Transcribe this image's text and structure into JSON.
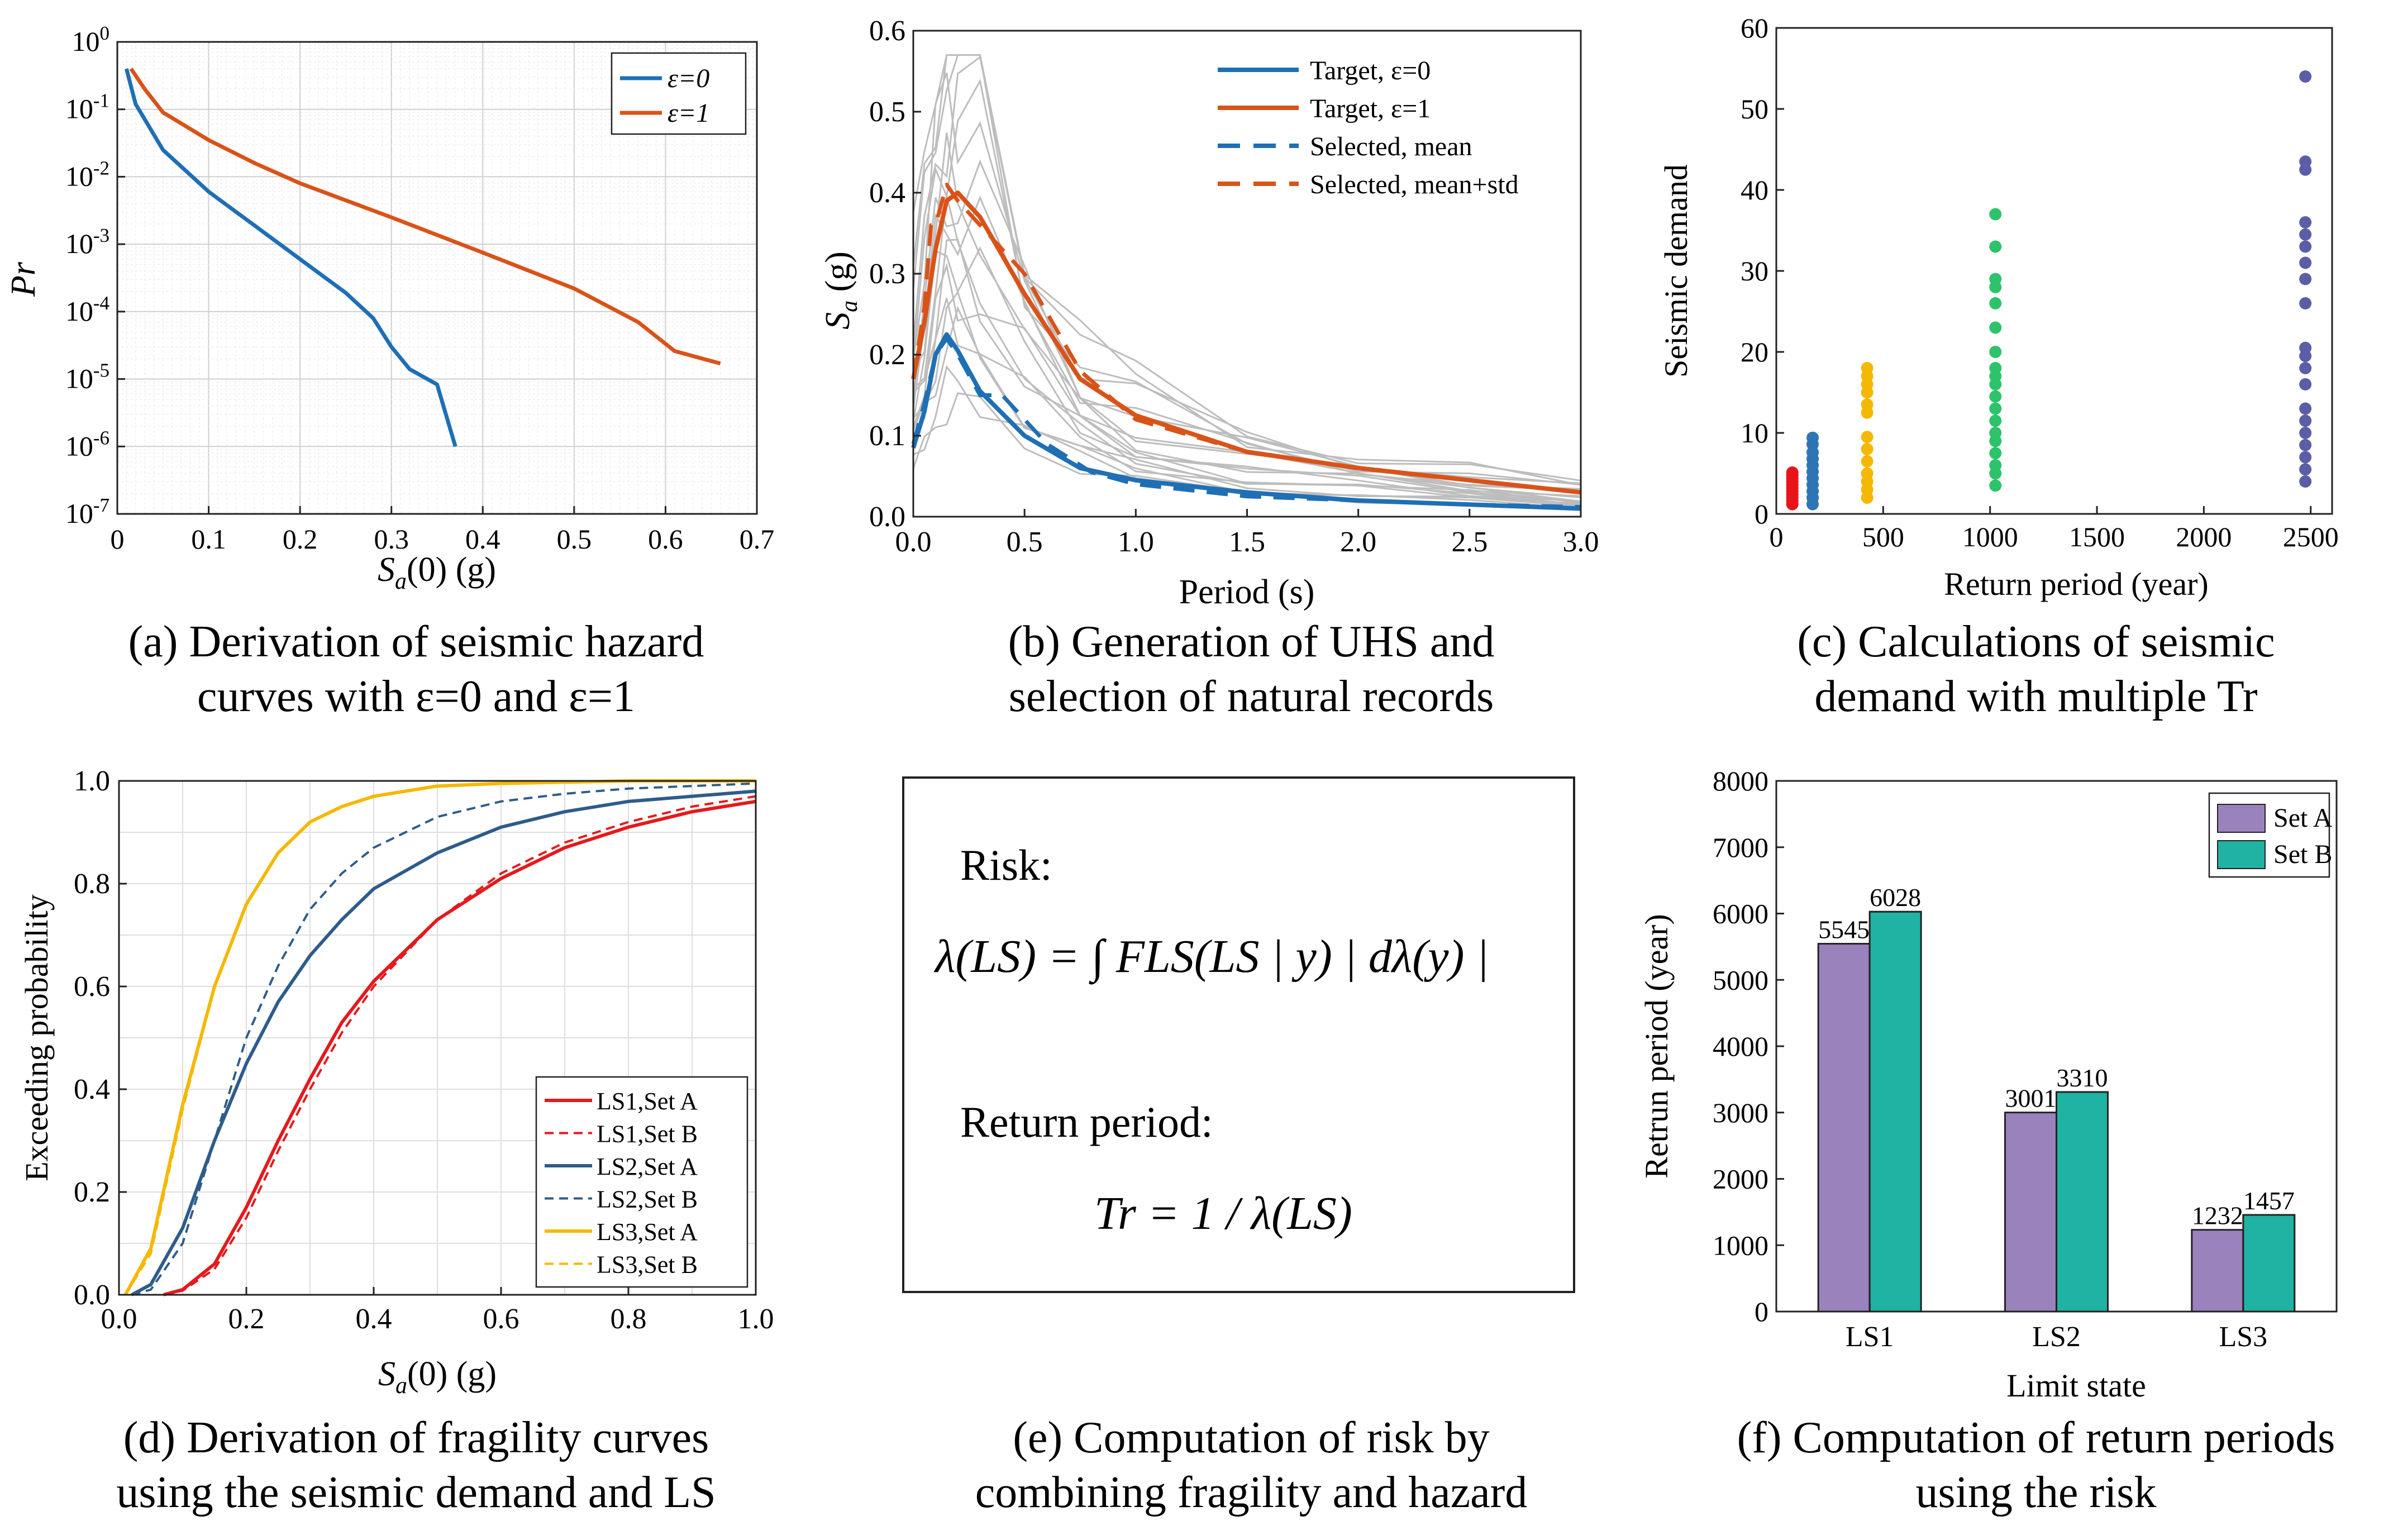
{
  "captions": {
    "a": [
      "(a) Derivation of seismic hazard",
      "curves with ε=0 and ε=1"
    ],
    "b": [
      "(b) Generation of UHS and",
      "selection of natural records"
    ],
    "c": [
      "(c) Calculations of seismic",
      "demand with multiple Tr"
    ],
    "d": [
      "(d) Derivation of fragility curves",
      "using the seismic demand and LS"
    ],
    "e": [
      "(e) Computation of risk by",
      "combining fragility and hazard"
    ],
    "f": [
      "(f) Computation of return periods",
      "using the risk"
    ]
  },
  "formula": {
    "risk_label": "Risk:",
    "risk_equation": "λ(LS) = ∫ FLS(LS | y) | dλ(y) |",
    "return_label": "Return period:",
    "return_equation": "Tr = 1 / λ(LS)"
  },
  "colors": {
    "blue": "#1f6fb5",
    "orange": "#d95319",
    "red": "#e41a1c",
    "navy": "#2e5c8a",
    "gold": "#f5b800",
    "purple": "#9a82bd",
    "teal": "#20b2a2",
    "gray": "#bdbdbd"
  },
  "chart_data": [
    {
      "id": "a",
      "type": "line",
      "xlabel": "Sa(0) (g)",
      "ylabel": "Pr",
      "xlim": [
        0,
        0.7
      ],
      "ylim": [
        1e-07,
        1
      ],
      "yscale": "log",
      "grid": true,
      "legend_position": "top-right",
      "xticks": [
        "0",
        "0.1",
        "0.2",
        "0.3",
        "0.4",
        "0.5",
        "0.6",
        "0.7"
      ],
      "yticks": [
        "10^-7",
        "10^-6",
        "10^-5",
        "10^-4",
        "10^-3",
        "10^-2",
        "10^-1",
        "10^0"
      ],
      "series": [
        {
          "name": "ε=0",
          "color": "#1f6fb5",
          "x": [
            0.01,
            0.02,
            0.05,
            0.1,
            0.15,
            0.2,
            0.25,
            0.28,
            0.3,
            0.32,
            0.35,
            0.37
          ],
          "y": [
            0.4,
            0.12,
            0.025,
            0.006,
            0.0019,
            0.0006,
            0.00019,
            8e-05,
            3e-05,
            1.4e-05,
            8.3e-06,
            1e-06
          ]
        },
        {
          "name": "ε=1",
          "color": "#d95319",
          "x": [
            0.015,
            0.03,
            0.05,
            0.1,
            0.15,
            0.2,
            0.3,
            0.4,
            0.5,
            0.57,
            0.61,
            0.66
          ],
          "y": [
            0.4,
            0.2,
            0.09,
            0.035,
            0.016,
            0.008,
            0.0025,
            0.00075,
            0.00022,
            7e-05,
            2.6e-05,
            1.7e-05
          ]
        }
      ]
    },
    {
      "id": "b",
      "type": "line",
      "xlabel": "Period (s)",
      "ylabel": "Sa (g)",
      "xlim": [
        0,
        3.0
      ],
      "ylim": [
        0,
        0.6
      ],
      "legend_position": "top-right",
      "xticks": [
        "0.0",
        "0.5",
        "1.0",
        "1.5",
        "2.0",
        "2.5",
        "3.0"
      ],
      "yticks": [
        "0.0",
        "0.1",
        "0.2",
        "0.3",
        "0.4",
        "0.5",
        "0.6"
      ],
      "series": [
        {
          "name": "Target, ε=0",
          "style": "solid",
          "color": "#1f6fb5",
          "x": [
            0,
            0.05,
            0.1,
            0.15,
            0.2,
            0.3,
            0.5,
            0.75,
            1.0,
            1.5,
            2.0,
            2.5,
            3.0
          ],
          "y": [
            0.085,
            0.13,
            0.2,
            0.225,
            0.205,
            0.155,
            0.1,
            0.06,
            0.045,
            0.03,
            0.02,
            0.015,
            0.01
          ]
        },
        {
          "name": "Target, ε=1",
          "style": "solid",
          "color": "#d95319",
          "x": [
            0,
            0.05,
            0.1,
            0.15,
            0.2,
            0.3,
            0.5,
            0.75,
            1.0,
            1.5,
            2.0,
            2.5,
            3.0
          ],
          "y": [
            0.17,
            0.24,
            0.33,
            0.39,
            0.4,
            0.37,
            0.275,
            0.17,
            0.125,
            0.08,
            0.06,
            0.045,
            0.03
          ]
        },
        {
          "name": "Selected, mean",
          "style": "dashed",
          "color": "#1f6fb5",
          "x": [
            0,
            0.05,
            0.1,
            0.15,
            0.2,
            0.3,
            0.4,
            0.5,
            0.6,
            0.8,
            1.0,
            1.5,
            2.0,
            2.5,
            3.0
          ],
          "y": [
            0.09,
            0.14,
            0.2,
            0.22,
            0.2,
            0.15,
            0.15,
            0.12,
            0.09,
            0.055,
            0.04,
            0.025,
            0.02,
            0.015,
            0.012
          ]
        },
        {
          "name": "Selected, mean+std",
          "style": "dashed",
          "color": "#d95319",
          "x": [
            0,
            0.05,
            0.08,
            0.1,
            0.15,
            0.2,
            0.3,
            0.5,
            0.75,
            1.0,
            1.5,
            2.0,
            2.5,
            3.0
          ],
          "y": [
            0.17,
            0.26,
            0.36,
            0.36,
            0.41,
            0.39,
            0.36,
            0.3,
            0.18,
            0.12,
            0.08,
            0.06,
            0.045,
            0.03
          ]
        }
      ]
    },
    {
      "id": "c",
      "type": "scatter",
      "xlabel": "Return period (year)",
      "ylabel": "Seismic demand",
      "xlim": [
        0,
        2600
      ],
      "ylim": [
        0,
        60
      ],
      "xticks": [
        "0",
        "500",
        "1000",
        "1500",
        "2000",
        "2500"
      ],
      "yticks": [
        "0",
        "10",
        "20",
        "30",
        "40",
        "50",
        "60"
      ],
      "groups": [
        {
          "x": 75,
          "color": "#e8141a",
          "y": [
            1.2,
            1.6,
            2.0,
            2.4,
            2.8,
            3.2,
            3.6,
            4.0,
            4.4,
            4.8,
            5.1
          ]
        },
        {
          "x": 170,
          "color": "#2e75b6",
          "y": [
            1.2,
            2.0,
            2.8,
            3.6,
            4.4,
            5.2,
            6.0,
            6.8,
            7.6,
            8.6,
            9.4
          ]
        },
        {
          "x": 425,
          "color": "#f5b800",
          "y": [
            2.0,
            3.0,
            4.0,
            5.0,
            6.5,
            8.0,
            9.5,
            12.5,
            13.5,
            15.0,
            16.0,
            17.0,
            18.0
          ]
        },
        {
          "x": 1025,
          "color": "#2dc36b",
          "y": [
            3.5,
            5.0,
            6.0,
            7.5,
            9.0,
            10.0,
            11.5,
            13.0,
            14.5,
            16.0,
            17.0,
            18.0,
            20.0,
            23.0,
            26.0,
            28.0,
            29.0,
            33.0,
            37.0
          ]
        },
        {
          "x": 2475,
          "color": "#5b5ea6",
          "y": [
            4.0,
            5.5,
            7.0,
            8.5,
            10.0,
            11.5,
            13.0,
            16.0,
            18.0,
            19.5,
            20.5,
            26.0,
            29.0,
            31.0,
            33.0,
            34.5,
            36.0,
            42.5,
            43.5,
            54.0
          ]
        }
      ]
    },
    {
      "id": "d",
      "type": "line",
      "xlabel": "Sa(0) (g)",
      "ylabel": "Exceeding probability",
      "xlim": [
        0,
        1.0
      ],
      "ylim": [
        0,
        1.0
      ],
      "grid": true,
      "legend_position": "bottom-right",
      "xticks": [
        "0.0",
        "0.2",
        "0.4",
        "0.6",
        "0.8",
        "1.0"
      ],
      "yticks": [
        "0.0",
        "0.2",
        "0.4",
        "0.6",
        "0.8",
        "1.0"
      ],
      "series": [
        {
          "name": "LS1,Set A",
          "style": "solid",
          "color": "#e41a1c",
          "x": [
            0.07,
            0.1,
            0.15,
            0.2,
            0.25,
            0.3,
            0.35,
            0.4,
            0.5,
            0.6,
            0.7,
            0.8,
            0.9,
            1.0
          ],
          "y": [
            0.0,
            0.01,
            0.06,
            0.17,
            0.3,
            0.42,
            0.53,
            0.61,
            0.73,
            0.81,
            0.87,
            0.91,
            0.94,
            0.96
          ]
        },
        {
          "name": "LS1,Set B",
          "style": "dashed",
          "color": "#e41a1c",
          "x": [
            0.07,
            0.1,
            0.15,
            0.2,
            0.25,
            0.3,
            0.35,
            0.4,
            0.5,
            0.6,
            0.7,
            0.8,
            0.9,
            1.0
          ],
          "y": [
            0.0,
            0.008,
            0.05,
            0.15,
            0.28,
            0.4,
            0.51,
            0.6,
            0.73,
            0.82,
            0.88,
            0.92,
            0.95,
            0.97
          ]
        },
        {
          "name": "LS2,Set A",
          "style": "solid",
          "color": "#2e5c8a",
          "x": [
            0.02,
            0.05,
            0.1,
            0.15,
            0.2,
            0.25,
            0.3,
            0.35,
            0.4,
            0.5,
            0.6,
            0.7,
            0.8,
            1.0
          ],
          "y": [
            0.0,
            0.02,
            0.13,
            0.3,
            0.45,
            0.57,
            0.66,
            0.73,
            0.79,
            0.86,
            0.91,
            0.94,
            0.96,
            0.98
          ]
        },
        {
          "name": "LS2,Set B",
          "style": "dashed",
          "color": "#2e5c8a",
          "x": [
            0.02,
            0.05,
            0.1,
            0.15,
            0.2,
            0.25,
            0.3,
            0.35,
            0.4,
            0.5,
            0.6,
            0.7,
            0.8,
            1.0
          ],
          "y": [
            0.0,
            0.01,
            0.1,
            0.3,
            0.5,
            0.64,
            0.75,
            0.82,
            0.87,
            0.93,
            0.96,
            0.975,
            0.985,
            0.995
          ]
        },
        {
          "name": "LS3,Set A",
          "style": "solid",
          "color": "#f5b800",
          "x": [
            0.01,
            0.05,
            0.1,
            0.15,
            0.2,
            0.25,
            0.3,
            0.35,
            0.4,
            0.5,
            0.6,
            0.8,
            1.0
          ],
          "y": [
            0.0,
            0.09,
            0.37,
            0.6,
            0.76,
            0.86,
            0.92,
            0.95,
            0.97,
            0.99,
            0.995,
            1.0,
            1.0
          ]
        },
        {
          "name": "LS3,Set B",
          "style": "dashed",
          "color": "#f5b800",
          "x": [
            0.01,
            0.05,
            0.1,
            0.15,
            0.2,
            0.25,
            0.3,
            0.35,
            0.4,
            0.5,
            0.6,
            0.8,
            1.0
          ],
          "y": [
            0.0,
            0.08,
            0.36,
            0.6,
            0.76,
            0.86,
            0.92,
            0.95,
            0.97,
            0.99,
            0.995,
            1.0,
            1.0
          ]
        }
      ]
    },
    {
      "id": "f",
      "type": "bar",
      "xlabel": "Limit state",
      "ylabel": "Retrun period (year)",
      "ylim": [
        0,
        8000
      ],
      "legend_position": "top-right",
      "categories": [
        "LS1",
        "LS2",
        "LS3"
      ],
      "yticks": [
        "0",
        "1000",
        "2000",
        "3000",
        "4000",
        "5000",
        "6000",
        "7000",
        "8000"
      ],
      "series": [
        {
          "name": "Set A",
          "color": "#9a82bd",
          "values": [
            5545,
            3001,
            1232
          ]
        },
        {
          "name": "Set B",
          "color": "#20b2a2",
          "values": [
            6028,
            3310,
            1457
          ]
        }
      ]
    }
  ]
}
